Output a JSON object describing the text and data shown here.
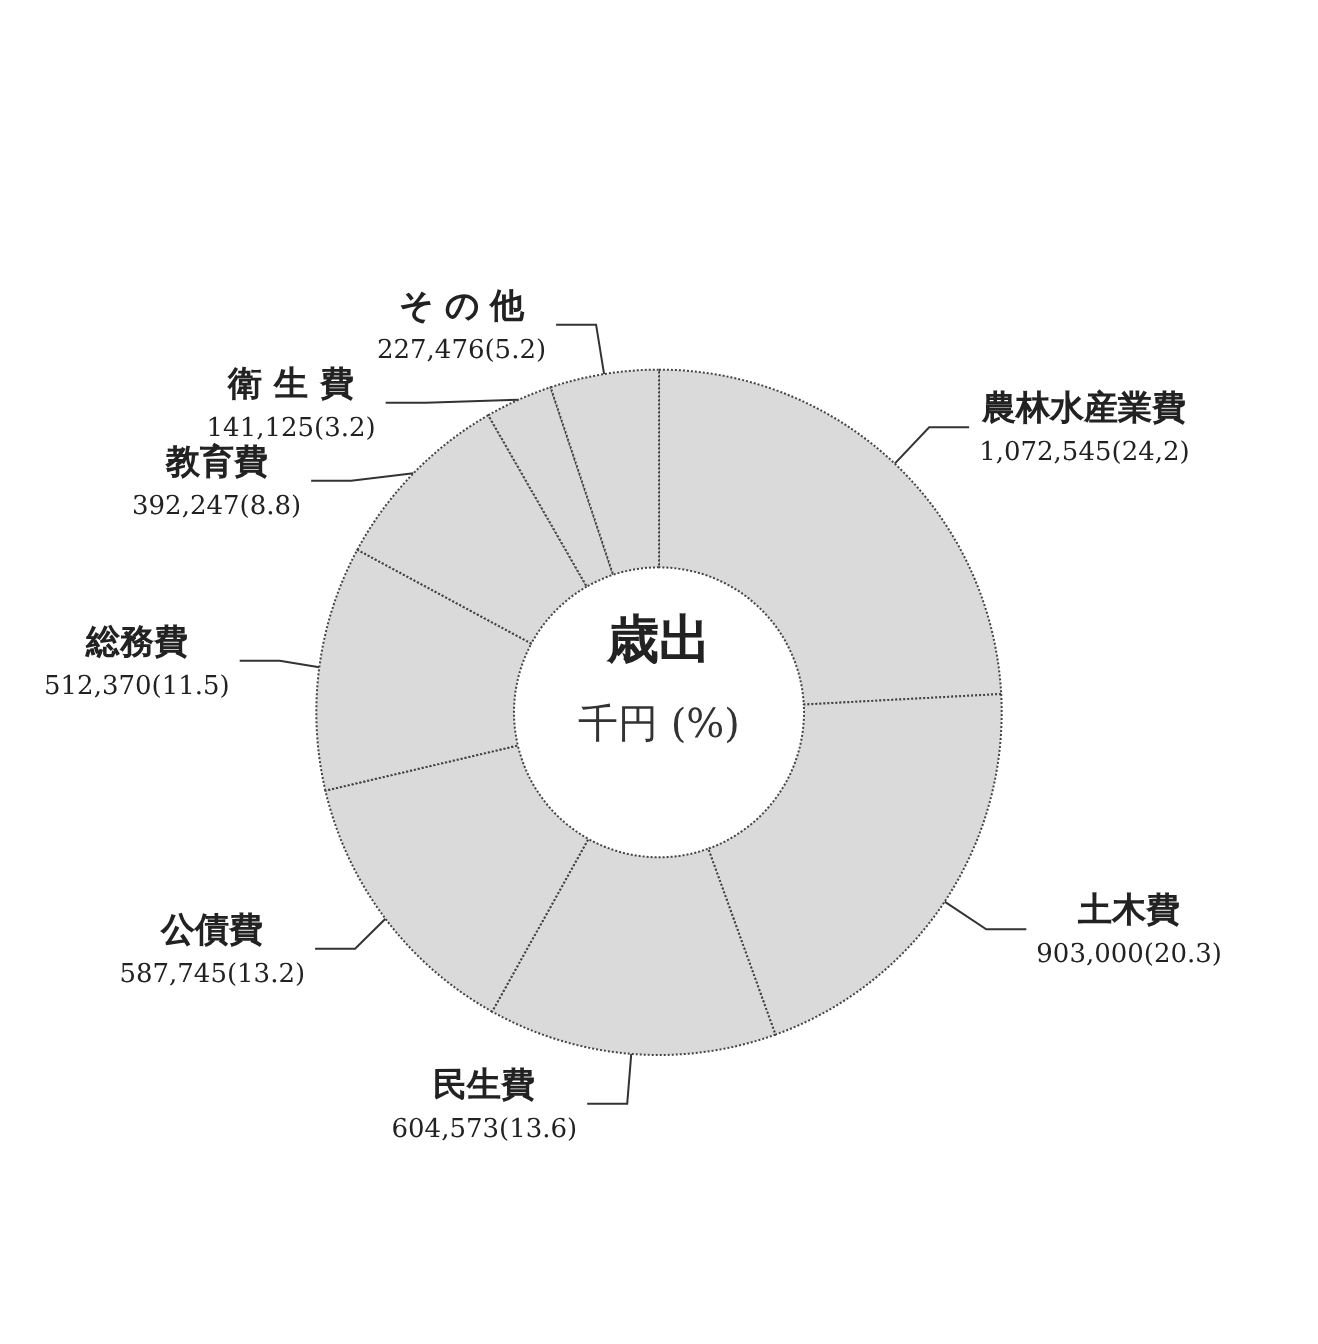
{
  "chart_data": {
    "type": "donut",
    "title": "歳出",
    "subtitle": "千円 (%)",
    "categories": [
      "農林水産業費",
      "土木費",
      "民生費",
      "公債費",
      "総務費",
      "教育費",
      "衛 生 費",
      "そ の 他"
    ],
    "values": [
      1072545,
      903000,
      604573,
      587745,
      512370,
      392247,
      141125,
      227476
    ],
    "value_labels": [
      "1,072,545(24,2)",
      "903,000(20.3)",
      "604,573(13.6)",
      "587,745(13.2)",
      "512,370(11.5)",
      "392,247(8.8)",
      "141,125(3.2)",
      "227,476(5.2)"
    ],
    "colors": [
      "#dadada",
      "#dadada",
      "#dadada",
      "#dadada",
      "#dadada",
      "#dadada",
      "#dadada",
      "#dadada"
    ]
  }
}
